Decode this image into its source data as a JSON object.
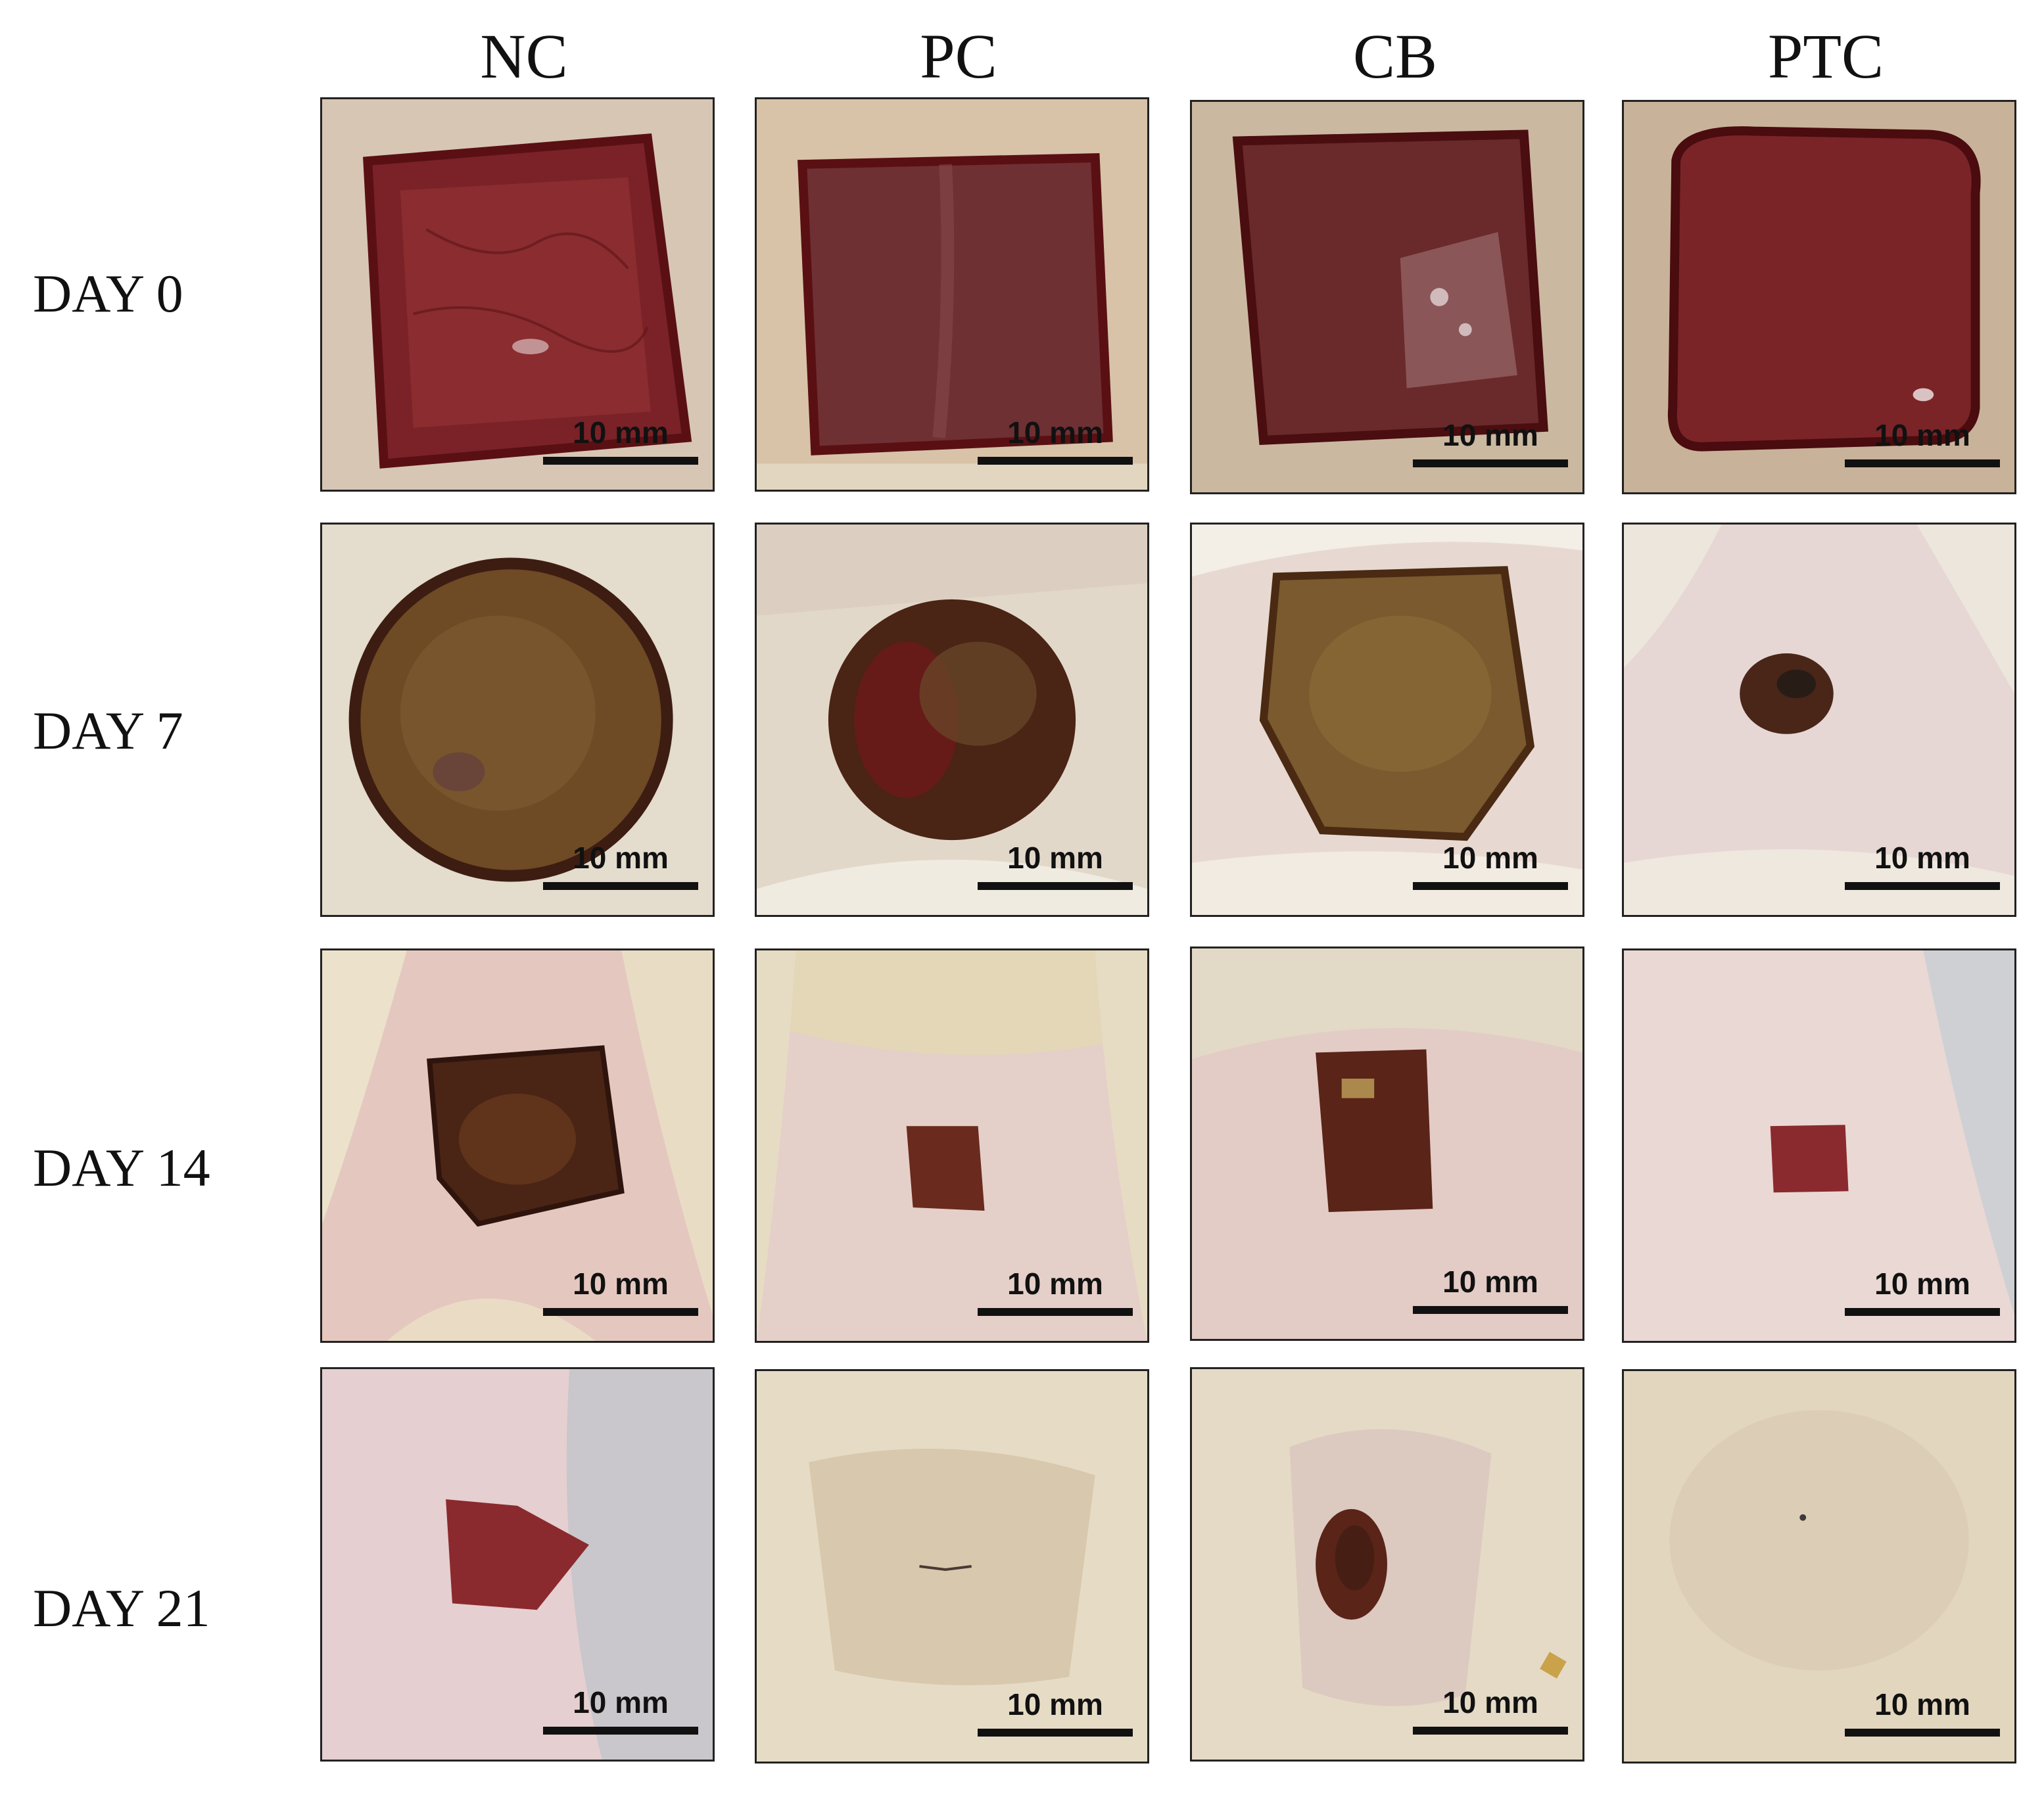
{
  "columns": [
    "NC",
    "PC",
    "CB",
    "PTC"
  ],
  "rows": [
    "DAY 0",
    "DAY 7",
    "DAY 14",
    "DAY 21"
  ],
  "scale_bar_label": "10 mm",
  "colors": {
    "fur": "#e6ddcb",
    "skin": "#e7c9c4",
    "open_wound": "#8a2a2e",
    "scab": "#6e4a25",
    "dark_scab": "#3d1d12",
    "healed_skin": "#d9cdb4"
  }
}
